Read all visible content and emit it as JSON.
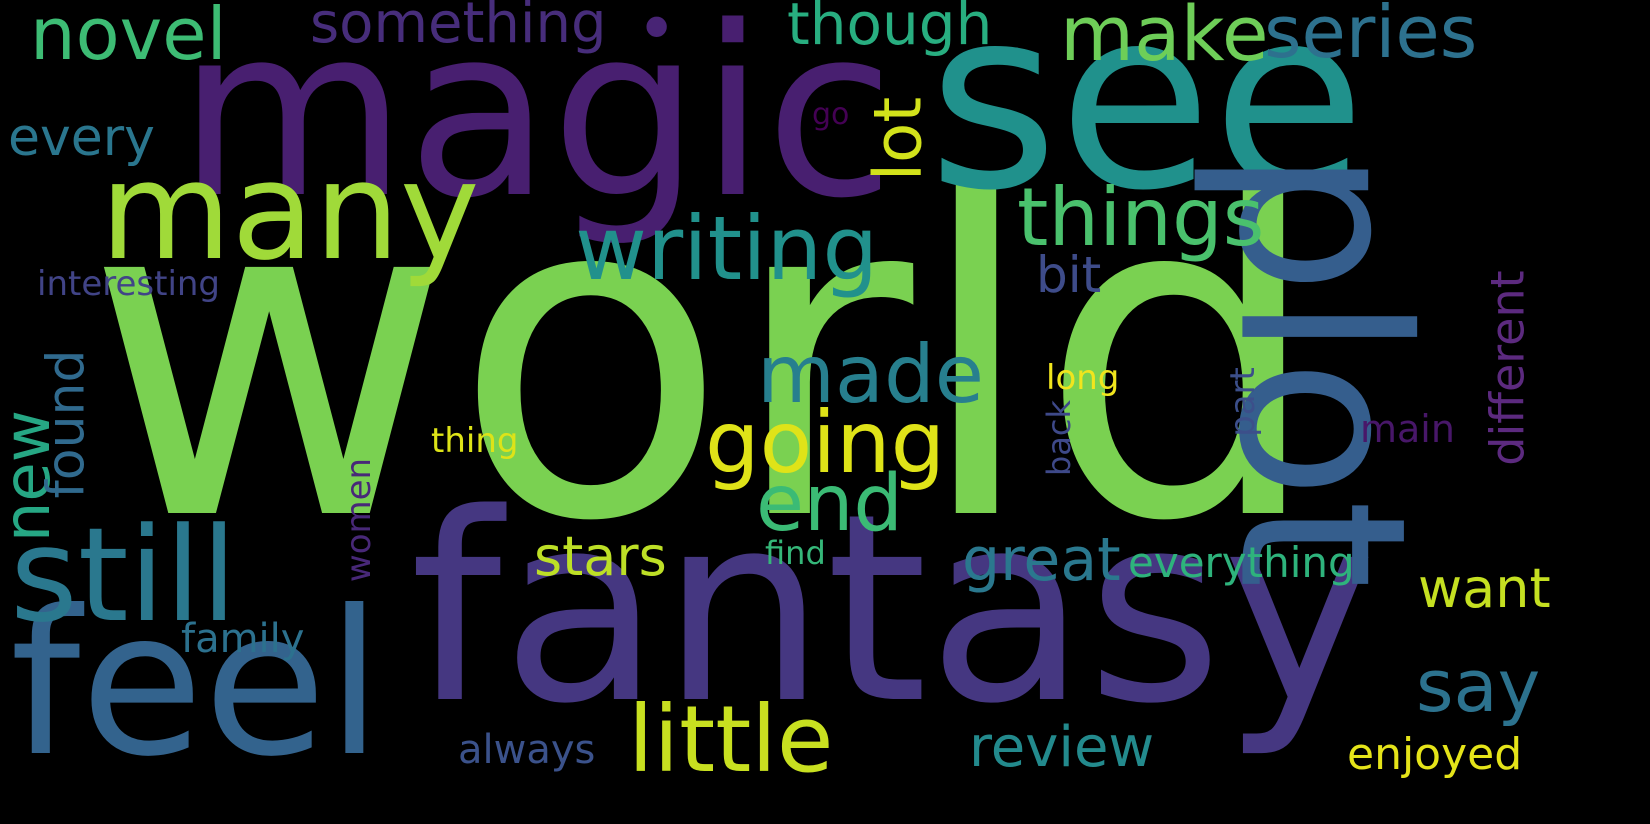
{
  "words": [
    {
      "text": "world",
      "color": "#7ad151"
    },
    {
      "text": "fantasy",
      "color": "#453781"
    },
    {
      "text": "magic",
      "color": "#481f70"
    },
    {
      "text": "see",
      "color": "#20918c"
    },
    {
      "text": "plot",
      "color": "#355e8d"
    },
    {
      "text": "feel",
      "color": "#33638d"
    },
    {
      "text": "many",
      "color": "#a0da39"
    },
    {
      "text": "still",
      "color": "#2a788e"
    },
    {
      "text": "little",
      "color": "#c8e020"
    },
    {
      "text": "writing",
      "color": "#21918c"
    },
    {
      "text": "things",
      "color": "#4ac16d"
    },
    {
      "text": "going",
      "color": "#dfe318"
    },
    {
      "text": "made",
      "color": "#277f8e"
    },
    {
      "text": "end",
      "color": "#3bbb75"
    },
    {
      "text": "novel",
      "color": "#3dbc74"
    },
    {
      "text": "make",
      "color": "#6ece58"
    },
    {
      "text": "series",
      "color": "#2d718e"
    },
    {
      "text": "something",
      "color": "#472d7b"
    },
    {
      "text": "though",
      "color": "#28ae80"
    },
    {
      "text": "say",
      "color": "#2c728e"
    },
    {
      "text": "review",
      "color": "#238a8d"
    },
    {
      "text": "lot",
      "color": "#d2e21b"
    },
    {
      "text": "every",
      "color": "#2a768e"
    },
    {
      "text": "new",
      "color": "#26a784"
    },
    {
      "text": "found",
      "color": "#306a8e"
    },
    {
      "text": "stars",
      "color": "#bddf26"
    },
    {
      "text": "great",
      "color": "#2a788e"
    },
    {
      "text": "want",
      "color": "#c5e021"
    },
    {
      "text": "different",
      "color": "#5c2a7f"
    },
    {
      "text": "bit",
      "color": "#3e4c8a"
    },
    {
      "text": "everything",
      "color": "#2eb37c"
    },
    {
      "text": "enjoyed",
      "color": "#e5e419"
    },
    {
      "text": "family",
      "color": "#2c718e"
    },
    {
      "text": "always",
      "color": "#3b528b"
    },
    {
      "text": "interesting",
      "color": "#414487"
    },
    {
      "text": "thing",
      "color": "#dde318"
    },
    {
      "text": "long",
      "color": "#f1e51d"
    },
    {
      "text": "part",
      "color": "#3c4f8a"
    },
    {
      "text": "back",
      "color": "#3e4989"
    },
    {
      "text": "main",
      "color": "#481769"
    },
    {
      "text": "women",
      "color": "#482878"
    },
    {
      "text": "find",
      "color": "#35b779"
    },
    {
      "text": "go",
      "color": "#440154"
    },
    {
      "text": "•",
      "color": "#482475"
    }
  ]
}
